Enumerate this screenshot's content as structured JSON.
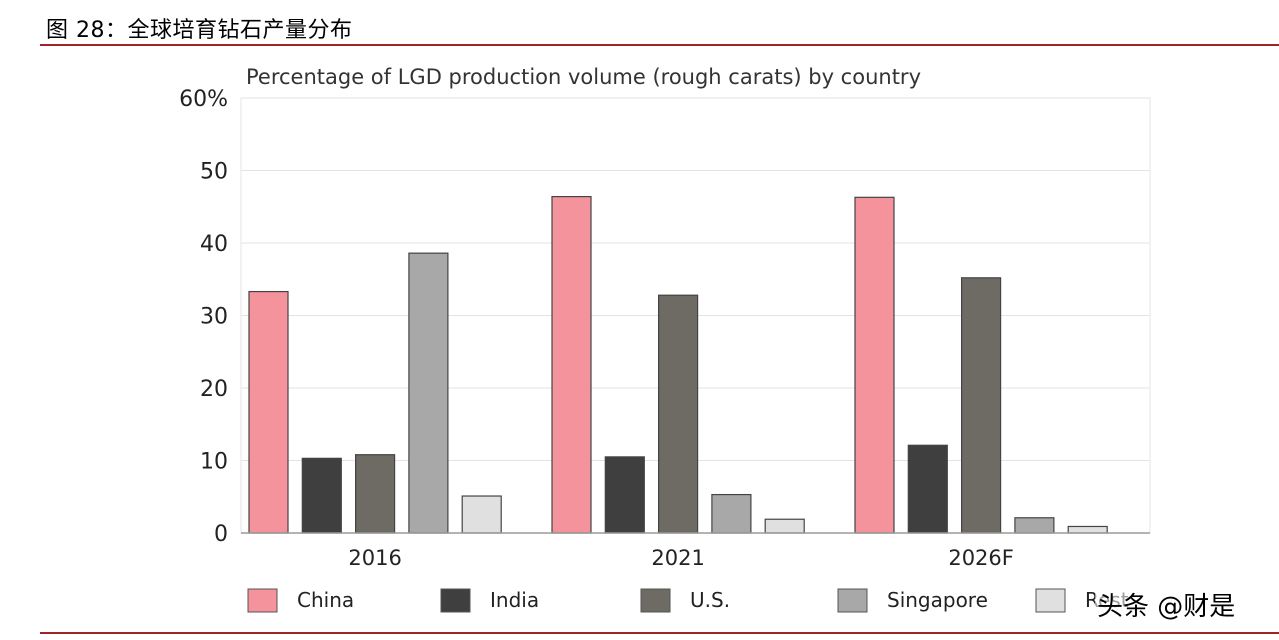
{
  "figure": {
    "title": "图 28：全球培育钻石产量分布",
    "watermark": "头条 @财是"
  },
  "chart_data": {
    "type": "bar",
    "title": "Percentage of LGD production volume (rough carats) by country",
    "xlabel": "",
    "ylabel": "",
    "ylim": [
      0,
      60
    ],
    "y_ticks": [
      0,
      10,
      20,
      30,
      40,
      50,
      60
    ],
    "y_tick_labels": [
      "0",
      "10",
      "20",
      "30",
      "40",
      "50",
      "60%"
    ],
    "grid": true,
    "legend_position": "bottom",
    "categories": [
      "2016",
      "2021",
      "2026F"
    ],
    "series": [
      {
        "name": "China",
        "color": "#f5939d",
        "values": [
          33.3,
          46.4,
          46.3
        ]
      },
      {
        "name": "India",
        "color": "#3f3f3f",
        "values": [
          10.3,
          10.5,
          12.1
        ]
      },
      {
        "name": "U.S.",
        "color": "#6e6a64",
        "values": [
          10.8,
          32.8,
          35.2
        ]
      },
      {
        "name": "Singapore",
        "color": "#a7a8a7",
        "values": [
          38.6,
          5.3,
          2.1
        ]
      },
      {
        "name": "Rest",
        "color": "#e0e0e0",
        "values": [
          5.1,
          1.9,
          0.9
        ]
      }
    ]
  }
}
